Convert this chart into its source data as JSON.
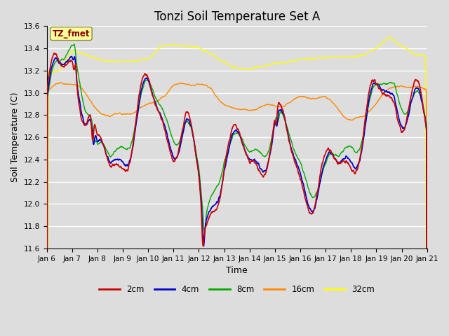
{
  "title": "Tonzi Soil Temperature Set A",
  "xlabel": "Time",
  "ylabel": "Soil Temperature (C)",
  "ylim": [
    11.6,
    13.6
  ],
  "line_colors": {
    "2cm": "#cc0000",
    "4cm": "#0000cc",
    "8cm": "#00aa00",
    "16cm": "#ff8800",
    "32cm": "#ffff00"
  },
  "legend_labels": [
    "2cm",
    "4cm",
    "8cm",
    "16cm",
    "32cm"
  ],
  "annotation_text": "TZ_fmet",
  "annotation_color": "#880000",
  "annotation_bg": "#ffff99",
  "bg_color": "#dddddd",
  "x_tick_labels": [
    "Jan 6",
    "Jan 7",
    "Jan 8",
    "Jan 9",
    "Jan 10",
    "Jan 11",
    "Jan 12",
    "Jan 13",
    "Jan 14",
    "Jan 15",
    "Jan 16",
    "Jan 17",
    "Jan 18",
    "Jan 19",
    "Jan 20",
    "Jan 21"
  ],
  "title_fontsize": 12,
  "axis_label_fontsize": 9,
  "tick_fontsize": 7.5
}
